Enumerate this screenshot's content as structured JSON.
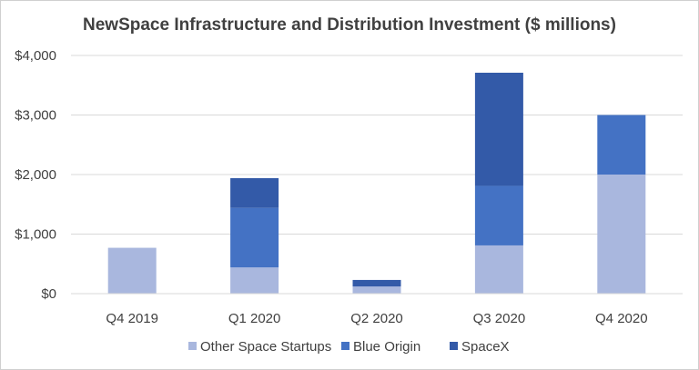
{
  "chart_data": {
    "type": "bar",
    "stacked": true,
    "title": "NewSpace Infrastructure and Distribution Investment ($ millions)",
    "xlabel": "",
    "ylabel": "",
    "categories": [
      "Q4 2019",
      "Q1 2020",
      "Q2 2020",
      "Q3 2020",
      "Q4 2020"
    ],
    "series": [
      {
        "name": "Other Space Startups",
        "color": "#A9B7DE",
        "values": [
          770,
          440,
          120,
          810,
          2000
        ]
      },
      {
        "name": "Blue Origin",
        "color": "#4472C4",
        "values": [
          0,
          1000,
          0,
          1000,
          1000
        ]
      },
      {
        "name": "SpaceX",
        "color": "#335AA8",
        "values": [
          0,
          500,
          110,
          1900,
          0
        ]
      }
    ],
    "ylim": [
      0,
      4000
    ],
    "yticks": [
      0,
      1000,
      2000,
      3000,
      4000
    ],
    "ytick_labels": [
      "$0",
      "$1,000",
      "$2,000",
      "$3,000",
      "$4,000"
    ],
    "grid": true,
    "legend_position": "bottom"
  }
}
